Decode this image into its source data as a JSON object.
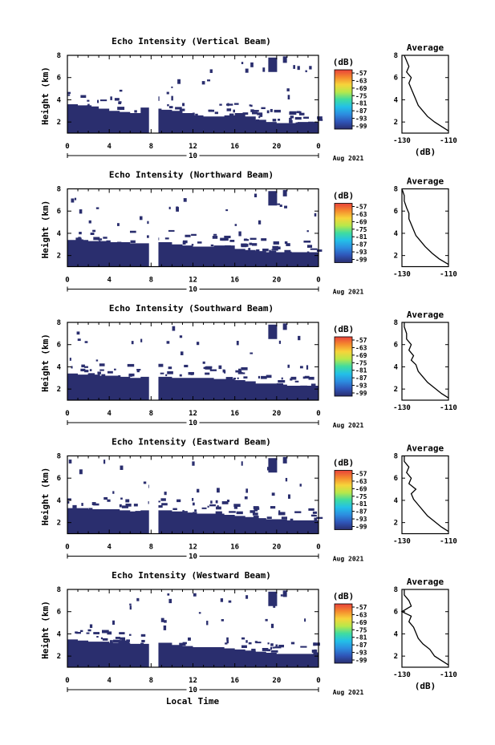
{
  "figure": {
    "xlabel_bottom": "Local Time",
    "date_label": "Aug 2021",
    "date_day": "10",
    "unit_label": "(dB)",
    "average_title": "Average",
    "colorbar_ticks": [
      "-57",
      "-63",
      "-69",
      "-75",
      "-81",
      "-87",
      "-93",
      "-99"
    ],
    "colormap": [
      "#2a2e6e",
      "#2f55b8",
      "#2c8de0",
      "#23c0e8",
      "#3fdca0",
      "#b8e84a",
      "#f7d43a",
      "#f58a2e",
      "#e8413a"
    ]
  },
  "chart_data": [
    {
      "type": "heatmap",
      "title": "Echo Intensity (Vertical Beam)",
      "ylabel": "Height (km)",
      "xlim": [
        0,
        24
      ],
      "ylim": [
        1,
        8
      ],
      "xticks": [
        "0",
        "4",
        "8",
        "12",
        "16",
        "20",
        "0"
      ],
      "yticks": [
        "2",
        "4",
        "6",
        "8"
      ],
      "colorbar_range_db": [
        -99,
        -57
      ],
      "echo_top_km": [
        3.6,
        3.5,
        3.4,
        3.2,
        3.0,
        2.9,
        2.8,
        3.3,
        3.2,
        3.1,
        3.0,
        2.8,
        2.6,
        2.5,
        2.5,
        2.6,
        2.8,
        2.5,
        2.2,
        2.0,
        1.9,
        1.9,
        2.0,
        2.0,
        2.0
      ],
      "data_gap_hours": [
        7.8,
        8.7
      ],
      "average": {
        "xlabel": "(dB)",
        "xlim": [
          -130,
          -110
        ],
        "xticks": [
          "-130",
          "-110"
        ],
        "ylim": [
          1,
          8
        ],
        "yticks": [
          "2",
          "4",
          "6",
          "8"
        ],
        "profile": [
          [
            -110,
            1.2
          ],
          [
            -113,
            1.6
          ],
          [
            -116,
            2.0
          ],
          [
            -119,
            2.5
          ],
          [
            -121,
            3.0
          ],
          [
            -123,
            3.5
          ],
          [
            -124,
            4.0
          ],
          [
            -125,
            4.5
          ],
          [
            -126,
            5.0
          ],
          [
            -127,
            5.5
          ],
          [
            -126,
            6.0
          ],
          [
            -128,
            6.5
          ],
          [
            -127,
            7.0
          ],
          [
            -128,
            7.5
          ],
          [
            -129,
            8.0
          ]
        ]
      }
    },
    {
      "type": "heatmap",
      "title": "Echo Intensity (Northward Beam)",
      "ylabel": "Height (km)",
      "xlim": [
        0,
        24
      ],
      "ylim": [
        1,
        8
      ],
      "xticks": [
        "0",
        "4",
        "8",
        "12",
        "16",
        "20",
        "0"
      ],
      "yticks": [
        "2",
        "4",
        "6",
        "8"
      ],
      "colorbar_range_db": [
        -99,
        -57
      ],
      "echo_top_km": [
        3.4,
        3.4,
        3.3,
        3.3,
        3.2,
        3.2,
        3.1,
        3.1,
        3.2,
        3.2,
        3.0,
        2.9,
        2.8,
        2.8,
        2.9,
        2.9,
        2.6,
        2.5,
        2.4,
        2.3,
        2.3,
        2.3,
        2.3,
        2.3,
        2.3
      ],
      "data_gap_hours": [
        7.8,
        8.7
      ],
      "average": {
        "xlabel": "",
        "xlim": [
          -130,
          -110
        ],
        "xticks": [
          "-130",
          "-110"
        ],
        "ylim": [
          1,
          8
        ],
        "yticks": [
          "2",
          "4",
          "6",
          "8"
        ],
        "profile": [
          [
            -110,
            1.2
          ],
          [
            -114,
            1.7
          ],
          [
            -117,
            2.2
          ],
          [
            -120,
            2.8
          ],
          [
            -122,
            3.3
          ],
          [
            -124,
            3.8
          ],
          [
            -125,
            4.3
          ],
          [
            -126,
            4.8
          ],
          [
            -127,
            5.3
          ],
          [
            -127,
            5.8
          ],
          [
            -128,
            6.3
          ],
          [
            -129,
            6.9
          ],
          [
            -129,
            7.4
          ],
          [
            -130,
            8.0
          ]
        ]
      }
    },
    {
      "type": "heatmap",
      "title": "Echo Intensity (Southward Beam)",
      "ylabel": "Height (km)",
      "xlim": [
        0,
        24
      ],
      "ylim": [
        1,
        8
      ],
      "xticks": [
        "0",
        "4",
        "8",
        "12",
        "16",
        "20",
        "0"
      ],
      "yticks": [
        "2",
        "4",
        "6",
        "8"
      ],
      "colorbar_range_db": [
        -99,
        -57
      ],
      "echo_top_km": [
        3.4,
        3.3,
        3.3,
        3.2,
        3.2,
        3.1,
        3.0,
        3.1,
        3.1,
        3.1,
        3.0,
        3.0,
        3.0,
        3.0,
        2.9,
        2.9,
        2.8,
        2.7,
        2.5,
        2.5,
        2.4,
        2.3,
        2.3,
        2.3,
        2.3
      ],
      "data_gap_hours": [
        7.8,
        8.7
      ],
      "average": {
        "xlabel": "",
        "xlim": [
          -130,
          -110
        ],
        "xticks": [
          "-130",
          "-110"
        ],
        "ylim": [
          1,
          8
        ],
        "yticks": [
          "2",
          "4",
          "6",
          "8"
        ],
        "profile": [
          [
            -110,
            1.2
          ],
          [
            -113,
            1.6
          ],
          [
            -116,
            2.1
          ],
          [
            -119,
            2.6
          ],
          [
            -121,
            3.1
          ],
          [
            -123,
            3.6
          ],
          [
            -124,
            4.2
          ],
          [
            -126,
            4.6
          ],
          [
            -125,
            5.0
          ],
          [
            -127,
            5.5
          ],
          [
            -126,
            6.0
          ],
          [
            -128,
            6.5
          ],
          [
            -128,
            7.0
          ],
          [
            -129,
            7.6
          ],
          [
            -129,
            8.0
          ]
        ]
      }
    },
    {
      "type": "heatmap",
      "title": "Echo Intensity (Eastward Beam)",
      "ylabel": "Height (km)",
      "xlim": [
        0,
        24
      ],
      "ylim": [
        1,
        8
      ],
      "xticks": [
        "0",
        "4",
        "8",
        "12",
        "16",
        "20",
        "0"
      ],
      "yticks": [
        "2",
        "4",
        "6",
        "8"
      ],
      "colorbar_range_db": [
        -99,
        -57
      ],
      "echo_top_km": [
        3.3,
        3.3,
        3.2,
        3.2,
        3.2,
        3.1,
        3.0,
        3.1,
        3.1,
        3.1,
        3.0,
        2.9,
        2.8,
        2.8,
        2.8,
        2.7,
        2.6,
        2.5,
        2.4,
        2.3,
        2.3,
        2.2,
        2.2,
        2.2,
        2.2
      ],
      "data_gap_hours": [
        7.8,
        8.7
      ],
      "average": {
        "xlabel": "",
        "xlim": [
          -130,
          -110
        ],
        "xticks": [
          "-130",
          "-110"
        ],
        "ylim": [
          1,
          8
        ],
        "yticks": [
          "2",
          "4",
          "6",
          "8"
        ],
        "profile": [
          [
            -110,
            1.2
          ],
          [
            -113,
            1.6
          ],
          [
            -116,
            2.1
          ],
          [
            -119,
            2.6
          ],
          [
            -121,
            3.1
          ],
          [
            -123,
            3.6
          ],
          [
            -125,
            4.1
          ],
          [
            -126,
            4.6
          ],
          [
            -124,
            5.0
          ],
          [
            -127,
            5.5
          ],
          [
            -126,
            6.0
          ],
          [
            -128,
            6.5
          ],
          [
            -127,
            7.0
          ],
          [
            -129,
            7.5
          ],
          [
            -129,
            8.0
          ]
        ]
      }
    },
    {
      "type": "heatmap",
      "title": "Echo Intensity (Westward Beam)",
      "ylabel": "Height (km)",
      "xlim": [
        0,
        24
      ],
      "ylim": [
        1,
        8
      ],
      "xticks": [
        "0",
        "4",
        "8",
        "12",
        "16",
        "20",
        "0"
      ],
      "yticks": [
        "2",
        "4",
        "6",
        "8"
      ],
      "colorbar_range_db": [
        -99,
        -57
      ],
      "echo_top_km": [
        3.5,
        3.4,
        3.3,
        3.3,
        3.2,
        3.2,
        3.1,
        3.1,
        3.2,
        3.2,
        3.0,
        2.9,
        2.8,
        2.8,
        2.8,
        2.7,
        2.6,
        2.5,
        2.4,
        2.3,
        2.2,
        2.2,
        2.2,
        2.2,
        2.2
      ],
      "data_gap_hours": [
        7.8,
        8.7
      ],
      "average": {
        "xlabel": "(dB)",
        "xlim": [
          -130,
          -110
        ],
        "xticks": [
          "-130",
          "-110"
        ],
        "ylim": [
          1,
          8
        ],
        "yticks": [
          "2",
          "4",
          "6",
          "8"
        ],
        "profile": [
          [
            -110,
            1.2
          ],
          [
            -113,
            1.6
          ],
          [
            -116,
            2.0
          ],
          [
            -118,
            2.6
          ],
          [
            -121,
            3.1
          ],
          [
            -123,
            3.6
          ],
          [
            -124,
            4.1
          ],
          [
            -125,
            4.6
          ],
          [
            -127,
            5.1
          ],
          [
            -126,
            5.6
          ],
          [
            -130,
            6.0
          ],
          [
            -126,
            6.5
          ],
          [
            -127,
            7.0
          ],
          [
            -129,
            7.5
          ],
          [
            -129,
            8.0
          ]
        ]
      }
    }
  ]
}
